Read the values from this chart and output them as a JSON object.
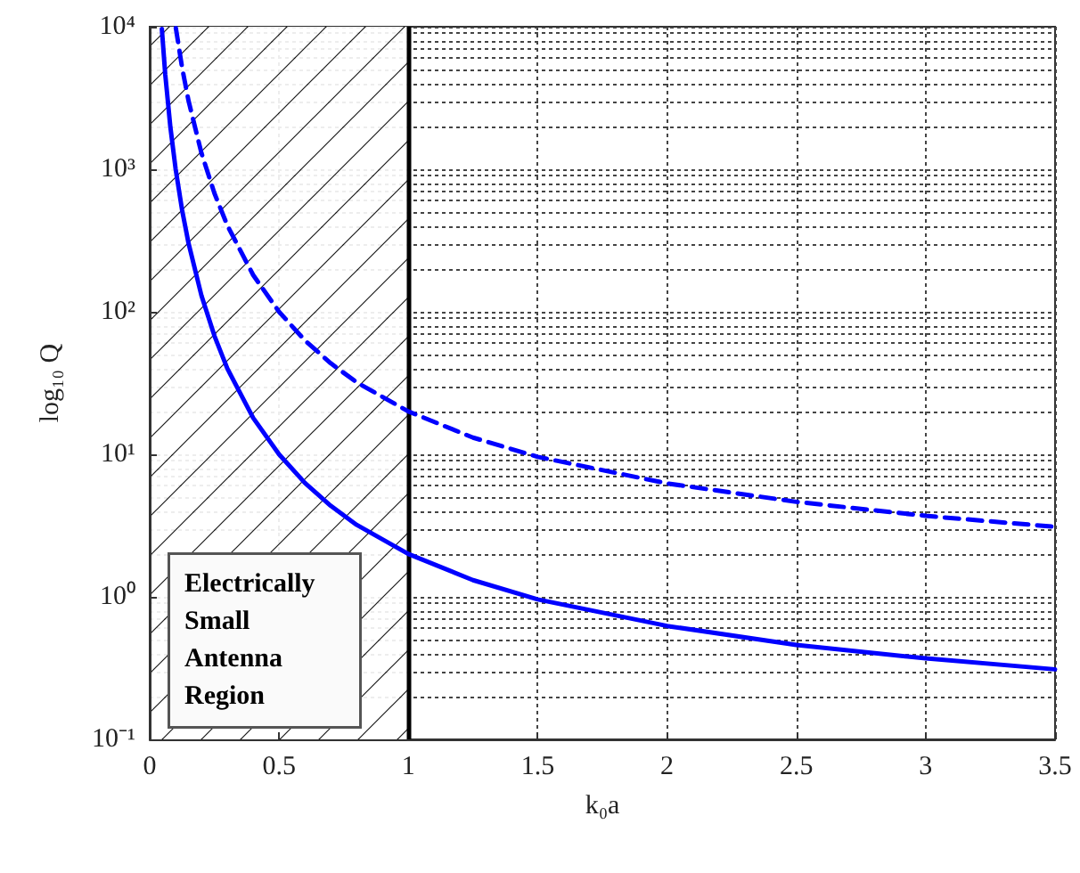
{
  "chart_data": {
    "type": "line",
    "xlabel": "k₀a",
    "ylabel": "log₁₀ Q",
    "xlim": [
      0,
      3.5
    ],
    "xticks": [
      0,
      0.5,
      1,
      1.5,
      2,
      2.5,
      3,
      3.5
    ],
    "ylim": [
      0.1,
      10000
    ],
    "yticks": [
      {
        "value": 0.1,
        "label": "10⁻¹"
      },
      {
        "value": 1,
        "label": "10⁰"
      },
      {
        "value": 10,
        "label": "10¹"
      },
      {
        "value": 100,
        "label": "10²"
      },
      {
        "value": 1000,
        "label": "10³"
      },
      {
        "value": 10000,
        "label": "10⁴"
      }
    ],
    "log": "y",
    "grid": true,
    "marker": "none",
    "series": [
      {
        "color": "#0000ff",
        "line_style": "solid",
        "x": [
          0.047,
          0.06,
          0.08,
          0.1,
          0.125,
          0.15,
          0.2,
          0.25,
          0.3,
          0.4,
          0.5,
          0.6,
          0.7,
          0.8,
          1,
          1.25,
          1.5,
          2,
          2.5,
          3,
          3.5
        ],
        "values": [
          9650,
          4650,
          1970,
          1010,
          520,
          303,
          130,
          68,
          40,
          18,
          10,
          6.3,
          4.35,
          3.2,
          2,
          1.31,
          0.96,
          0.625,
          0.46,
          0.37,
          0.31
        ]
      },
      {
        "color": "#0000ff",
        "line_style": "dashed",
        "x": [
          0.101,
          0.125,
          0.15,
          0.2,
          0.25,
          0.3,
          0.4,
          0.5,
          0.6,
          0.7,
          0.8,
          1,
          1.25,
          1.5,
          2,
          2.5,
          3,
          3.5
        ],
        "values": [
          9800,
          5200,
          3030,
          1300,
          680,
          404,
          181,
          100,
          63,
          43.5,
          32,
          20,
          13.1,
          9.6,
          6.25,
          4.64,
          3.7,
          3.1
        ]
      }
    ],
    "ref_lines": [
      {
        "axis": "x",
        "value": 1,
        "color": "#000000",
        "line_style": "solid"
      }
    ],
    "bands": [
      {
        "axis": "x",
        "from": 0,
        "to": 1,
        "label": "Electrically Small Antenna Region"
      }
    ]
  }
}
